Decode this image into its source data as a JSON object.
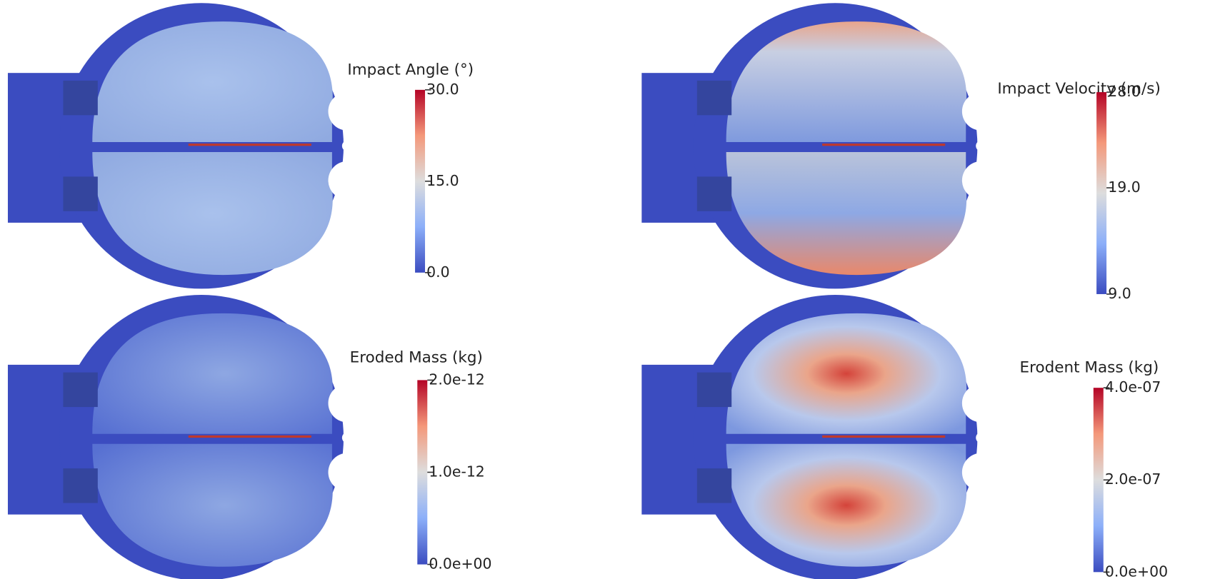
{
  "panels": [
    {
      "title": "Impact Angle (°)",
      "ticks": [
        {
          "value": 30,
          "label": "30.0"
        },
        {
          "value": 15,
          "label": "15.0"
        },
        {
          "value": 0,
          "label": "0.0"
        }
      ]
    },
    {
      "title": "Impact Velocity (m/s)",
      "ticks": [
        {
          "value": 28,
          "label": "28.0"
        },
        {
          "value": 19,
          "label": "19.0"
        },
        {
          "value": 9,
          "label": "9.0"
        }
      ]
    },
    {
      "title": "Eroded Mass (kg)",
      "ticks": [
        {
          "value": 2e-12,
          "label": "2.0e-12"
        },
        {
          "value": 1e-12,
          "label": "1.0e-12"
        },
        {
          "value": 0,
          "label": "0.0e+00"
        }
      ]
    },
    {
      "title": "Erodent Mass (kg)",
      "ticks": [
        {
          "value": 4e-07,
          "label": "4.0e-07"
        },
        {
          "value": 2e-07,
          "label": "2.0e-07"
        },
        {
          "value": 0,
          "label": "0.0e+00"
        }
      ]
    }
  ]
}
